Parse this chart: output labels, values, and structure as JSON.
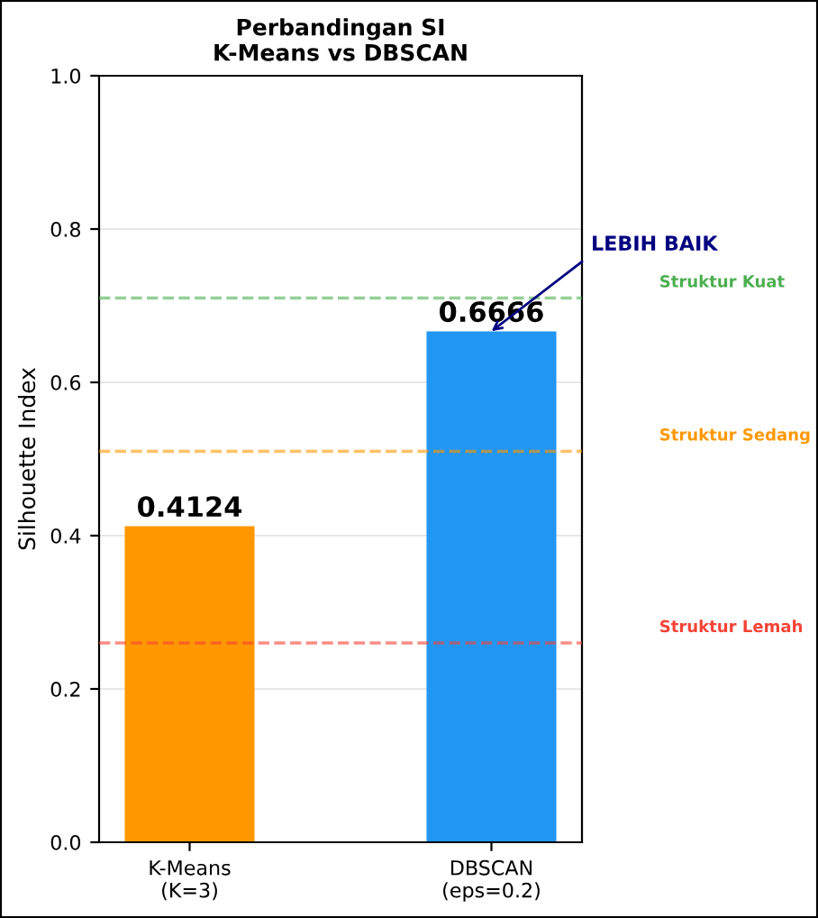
{
  "chart_data": {
    "type": "bar",
    "title": "Perbandingan SI\nK-Means vs DBSCAN",
    "ylabel": "Silhouette Index",
    "categories": [
      "K-Means\n(K=3)",
      "DBSCAN\n(eps=0.2)"
    ],
    "values": [
      0.4124,
      0.6666
    ],
    "colors": [
      "#ff9800",
      "#2196f3"
    ],
    "ylim": [
      0,
      1
    ],
    "yticks": [
      {
        "value": 0,
        "label": "0.0"
      },
      0.2,
      0.4,
      0.6,
      0.8,
      {
        "value": 1,
        "label": "1.0"
      }
    ],
    "grid": "y",
    "data_labels": true,
    "ref_lines": [
      {
        "axis": "y",
        "value": 0.71,
        "label": "Struktur Kuat",
        "color": "#4caf50",
        "line_style": "dashed"
      },
      {
        "axis": "y",
        "value": 0.51,
        "label": "Struktur Sedang",
        "color": "#ff9800",
        "line_style": "dashed"
      },
      {
        "axis": "y",
        "value": 0.26,
        "label": "Struktur Lemah",
        "color": "#f44336",
        "line_style": "dashed"
      }
    ],
    "annotations": [
      {
        "text": "LEBIH BAIK",
        "x": "DBSCAN\n(eps=0.2)",
        "y": 0.6666
      }
    ]
  }
}
